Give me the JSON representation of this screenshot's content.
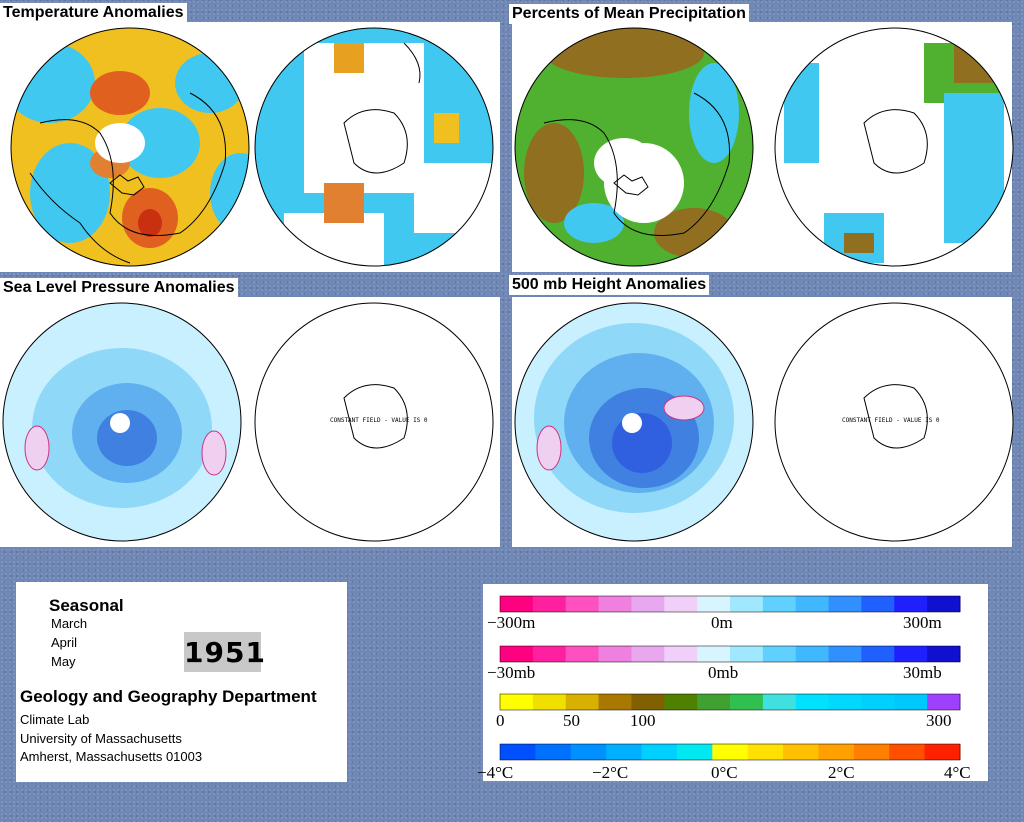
{
  "panels": {
    "temperature": {
      "title": "Temperature Anomalies"
    },
    "precipitation": {
      "title": "Percents of Mean Precipitation"
    },
    "slp": {
      "title": "Sea Level Pressure Anomalies"
    },
    "height500": {
      "title": "500 mb Height Anomalies"
    }
  },
  "constant_field_label": "CONSTANT FIELD - VALUE IS 0",
  "info": {
    "period": "Seasonal",
    "months": [
      "March",
      "April",
      "May"
    ],
    "year": "1951",
    "department": "Geology and Geography Department",
    "lab": "Climate Lab",
    "university": "University of Massachusetts",
    "address": "Amherst, Massachusetts 01003"
  },
  "legends": [
    {
      "id": "height",
      "labels": [
        "−300m",
        "0m",
        "300m"
      ],
      "colors": [
        "#ff0080",
        "#ff20a0",
        "#ff50c0",
        "#f080e0",
        "#e8a8f0",
        "#f0d0f8",
        "#d8f4ff",
        "#a0e8ff",
        "#60d0ff",
        "#40b8ff",
        "#3090ff",
        "#2060ff",
        "#2020ff",
        "#1010d0"
      ]
    },
    {
      "id": "pressure",
      "labels": [
        "−30mb",
        "0mb",
        "30mb"
      ],
      "colors": [
        "#ff0080",
        "#ff20a0",
        "#ff50c0",
        "#f080e0",
        "#e8a8f0",
        "#f0d0f8",
        "#d8f4ff",
        "#a0e8ff",
        "#60d0ff",
        "#40b8ff",
        "#3090ff",
        "#2060ff",
        "#2020ff",
        "#1010d0"
      ]
    },
    {
      "id": "precip",
      "labels": [
        "0",
        "50",
        "100",
        "300"
      ],
      "colors": [
        "#ffff00",
        "#f0e000",
        "#d8b000",
        "#a87800",
        "#806000",
        "#508000",
        "#40a030",
        "#30c050",
        "#40e0e0",
        "#00e0ff",
        "#00d8ff",
        "#00d0ff",
        "#00c8ff",
        "#a040ff"
      ]
    },
    {
      "id": "temp",
      "labels": [
        "−4°C",
        "−2°C",
        "0°C",
        "2°C",
        "4°C"
      ],
      "colors": [
        "#0050ff",
        "#0070ff",
        "#0090ff",
        "#00b0ff",
        "#00d0ff",
        "#00e8f0",
        "#ffff00",
        "#ffe000",
        "#ffc000",
        "#ffa000",
        "#ff8000",
        "#ff5000",
        "#ff2000"
      ]
    }
  ],
  "colors": {
    "background": "#6f87b5",
    "cold": "#40c8f0",
    "warm": "#f0c020",
    "hot": "#e06020",
    "slp_fill": "#c8f0ff",
    "slp_low": "#5090f0",
    "z_low": "#3060e0"
  }
}
